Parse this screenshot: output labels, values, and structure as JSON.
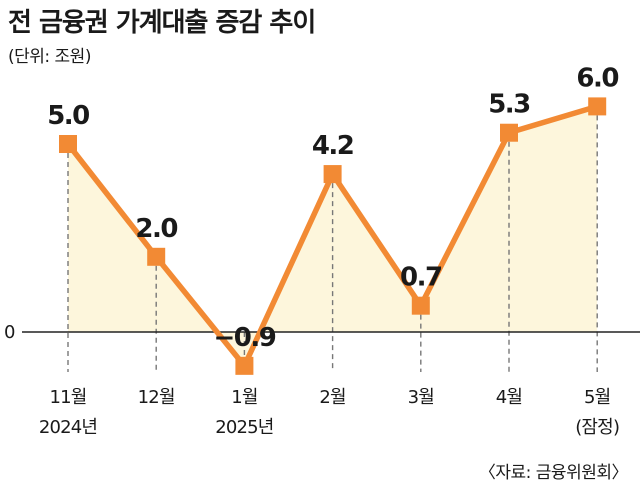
{
  "title": "전 금융권 가계대출 증감 추이",
  "unit_label": "(단위: 조원)",
  "source": "〈자료: 금융위원회〉",
  "colors": {
    "line": "#f28a34",
    "fill": "#fdf6dc",
    "axis": "#222222",
    "guide": "#777777"
  },
  "chart_data": {
    "type": "line",
    "title": "전 금융권 가계대출 증감 추이",
    "ylabel": "(단위: 조원)",
    "xlabel": "",
    "zero_label": "0",
    "ylim": [
      -0.9,
      6.0
    ],
    "grid": false,
    "categories": [
      [
        "11월",
        "2024년"
      ],
      [
        "12월",
        ""
      ],
      [
        "1월",
        "2025년"
      ],
      [
        "2월",
        ""
      ],
      [
        "3월",
        ""
      ],
      [
        "4월",
        ""
      ],
      [
        "5월",
        "(잠정)"
      ]
    ],
    "values": [
      5.0,
      2.0,
      -0.9,
      4.2,
      0.7,
      5.3,
      6.0
    ],
    "value_labels": [
      "5.0",
      "2.0",
      "−0.9",
      "4.2",
      "0.7",
      "5.3",
      "6.0"
    ]
  }
}
